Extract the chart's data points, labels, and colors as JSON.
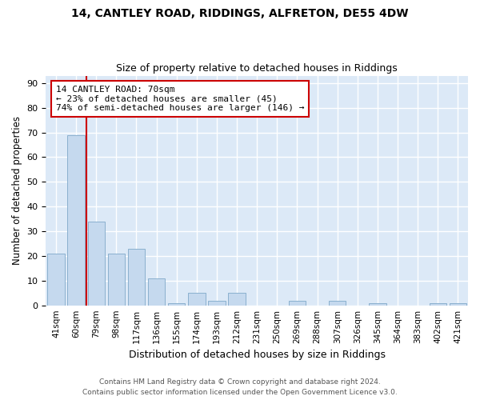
{
  "title1": "14, CANTLEY ROAD, RIDDINGS, ALFRETON, DE55 4DW",
  "title2": "Size of property relative to detached houses in Riddings",
  "xlabel": "Distribution of detached houses by size in Riddings",
  "ylabel": "Number of detached properties",
  "categories": [
    "41sqm",
    "60sqm",
    "79sqm",
    "98sqm",
    "117sqm",
    "136sqm",
    "155sqm",
    "174sqm",
    "193sqm",
    "212sqm",
    "231sqm",
    "250sqm",
    "269sqm",
    "288sqm",
    "307sqm",
    "326sqm",
    "345sqm",
    "364sqm",
    "383sqm",
    "402sqm",
    "421sqm"
  ],
  "values": [
    21,
    69,
    34,
    21,
    23,
    11,
    1,
    5,
    2,
    5,
    0,
    0,
    2,
    0,
    2,
    0,
    1,
    0,
    0,
    1,
    1
  ],
  "bar_color": "#c5d9ee",
  "bar_edge_color": "#8ab0ce",
  "background_color": "#dce9f7",
  "grid_color": "#ffffff",
  "fig_background": "#ffffff",
  "property_line_x": 1.5,
  "annotation_title": "14 CANTLEY ROAD: 70sqm",
  "annotation_line1": "← 23% of detached houses are smaller (45)",
  "annotation_line2": "74% of semi-detached houses are larger (146) →",
  "annotation_box_color": "#ffffff",
  "annotation_border_color": "#cc0000",
  "property_line_color": "#cc0000",
  "ylim": [
    0,
    93
  ],
  "yticks": [
    0,
    10,
    20,
    30,
    40,
    50,
    60,
    70,
    80,
    90
  ],
  "footer": "Contains HM Land Registry data © Crown copyright and database right 2024.\nContains public sector information licensed under the Open Government Licence v3.0."
}
